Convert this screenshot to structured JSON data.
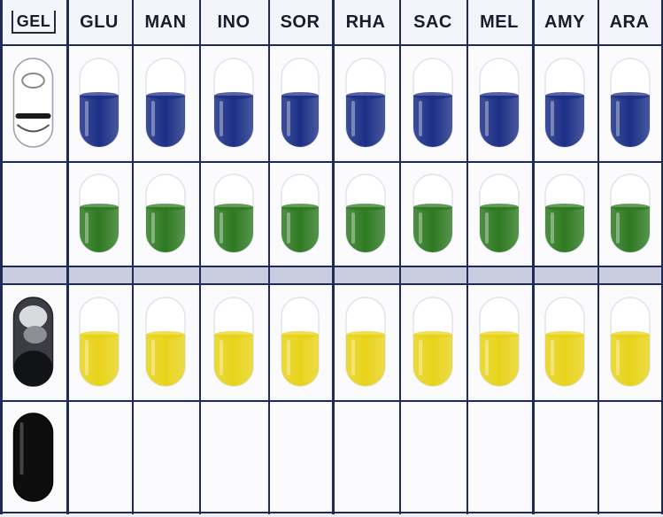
{
  "columns": [
    "GEL",
    "GLU",
    "MAN",
    "INO",
    "SOR",
    "RHA",
    "SAC",
    "MEL",
    "AMY",
    "ARA"
  ],
  "rows": [
    {
      "label": "row-1-blue",
      "cells": [
        "white-opaque-with-black-ring",
        "blue",
        "blue",
        "blue",
        "blue",
        "blue",
        "blue",
        "blue",
        "blue",
        "blue"
      ]
    },
    {
      "label": "row-2-green",
      "cells": [
        "empty",
        "green",
        "green",
        "green",
        "green",
        "green",
        "green",
        "green",
        "green",
        "green"
      ]
    },
    {
      "label": "row-3-yellow",
      "cells": [
        "grey-black-mottled",
        "yellow",
        "yellow",
        "yellow",
        "yellow",
        "yellow",
        "yellow",
        "yellow",
        "yellow",
        "yellow"
      ]
    },
    {
      "label": "row-4-reference",
      "cells": [
        "black",
        "empty",
        "empty",
        "empty",
        "empty",
        "empty",
        "empty",
        "empty",
        "empty",
        "empty"
      ]
    }
  ],
  "colors": {
    "blue": "#1c2f86",
    "green": "#2f7a22",
    "yellow": "#e8d31a",
    "black": "#0d0d0d",
    "grid": "#1f2a55"
  }
}
